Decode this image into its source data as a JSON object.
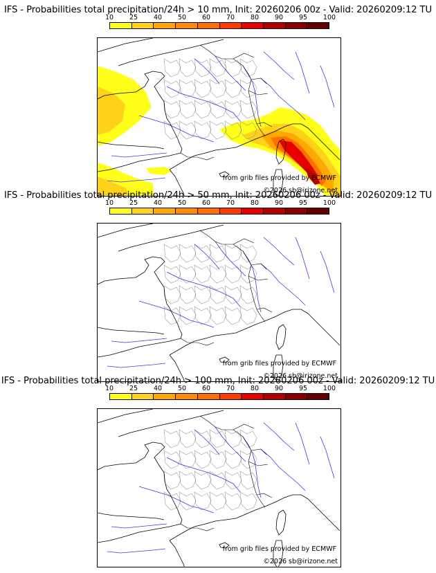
{
  "colorbar": {
    "ticks": [
      "10",
      "25",
      "40",
      "50",
      "60",
      "70",
      "80",
      "90",
      "95",
      "100"
    ],
    "colors": [
      "#ffff1a",
      "#ffd21a",
      "#ffa800",
      "#ff8c00",
      "#ff6e00",
      "#ff3c00",
      "#e60000",
      "#b40000",
      "#8c0000",
      "#640000"
    ]
  },
  "panels": [
    {
      "title": "IFS - Probabilities total precipitation/24h > 10 mm, Init: 20260206 00z - Valid: 20260209:12 TU",
      "source": "from grib files provided by ECMWF",
      "copyright": "©2026 sb@irizone.net",
      "precip": true
    },
    {
      "title": "IFS - Probabilities total precipitation/24h > 50 mm, Init: 20260206 00z - Valid: 20260209:12 TU",
      "source": "from grib files provided by ECMWF",
      "copyright": "©2026 sb@irizone.net",
      "precip": false
    },
    {
      "title": "IFS - Probabilities total precipitation/24h > 100 mm, Init: 20260206 00z - Valid: 20260209:12 TU",
      "source": "from grib files provided by ECMWF",
      "copyright": "©2026 sb@irizone.net",
      "precip": false
    }
  ]
}
